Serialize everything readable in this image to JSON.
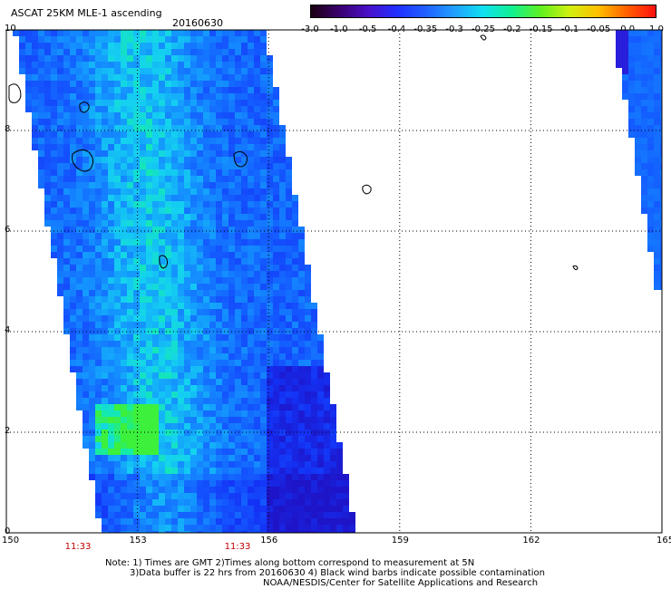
{
  "header": {
    "title": "ASCAT 25KM MLE-1 ascending",
    "date": "20160630"
  },
  "colorbar": {
    "labels": [
      "-3.0",
      "-1.0",
      "-0.5",
      "-0.4",
      "-0.35",
      "-0.3",
      "-0.25",
      "-0.2",
      "-0.15",
      "-0.1",
      "-0.05",
      "0.0",
      "1.0"
    ],
    "colors": [
      "#1a0010",
      "#3a0070",
      "#4a10c8",
      "#2030ff",
      "#2060ff",
      "#20a0ff",
      "#10e0f0",
      "#10f090",
      "#60f020",
      "#d0f010",
      "#ffc000",
      "#ff6000",
      "#ff1010"
    ]
  },
  "axes": {
    "lon_labels": [
      "150",
      "153",
      "156",
      "159",
      "162",
      "165"
    ],
    "lat_labels": [
      "0",
      "2",
      "4",
      "6",
      "8",
      "10"
    ],
    "lon_range": [
      150,
      165
    ],
    "lat_range": [
      0,
      10
    ]
  },
  "times": [
    "11:33",
    "11:33"
  ],
  "notes": [
    "Note: 1) Times are GMT 2)Times along bottom correspond to measurement at 5N",
    "3)Data buffer is 22 hrs from 20160630 4) Black wind barbs indicate possible contamination",
    "NOAA/NESDIS/Center for Satellite Applications and Research"
  ]
}
